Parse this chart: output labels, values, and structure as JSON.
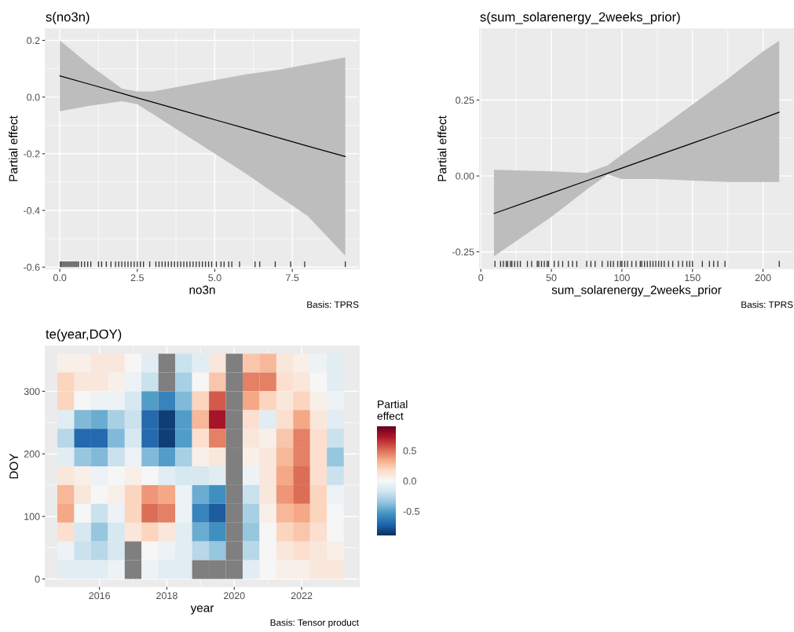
{
  "chart_data": [
    {
      "type": "line",
      "title": "s(no3n)",
      "xlabel": "no3n",
      "ylabel": "Partial effect",
      "annotations": [
        "Basis: TPRS"
      ],
      "xlim": [
        -0.46,
        9.65
      ],
      "ylim": [
        -0.605,
        0.24
      ],
      "xticks": [
        {
          "value": 0,
          "label": "0.0"
        },
        {
          "value": 2.5,
          "label": "2.5"
        },
        {
          "value": 5,
          "label": "5.0"
        },
        {
          "value": 7.5,
          "label": "7.5"
        }
      ],
      "yticks": [
        {
          "value": -0.6,
          "label": "-0.6"
        },
        {
          "value": -0.4,
          "label": "-0.4"
        },
        {
          "value": -0.2,
          "label": "-0.2"
        },
        {
          "value": 0,
          "label": "0.0"
        },
        {
          "value": 0.2,
          "label": "0.2"
        }
      ],
      "grid": true,
      "series": [
        {
          "type": "line",
          "color": "#000000",
          "x": [
            0,
            1,
            2,
            2.5,
            3,
            4,
            5,
            6,
            7,
            8,
            9.21
          ],
          "values": [
            0.075,
            0.044,
            0.013,
            -0.003,
            -0.018,
            -0.049,
            -0.08,
            -0.111,
            -0.142,
            -0.173,
            -0.21
          ],
          "lower": [
            -0.05,
            -0.03,
            -0.015,
            -0.025,
            -0.06,
            -0.13,
            -0.2,
            -0.27,
            -0.345,
            -0.42,
            -0.56
          ],
          "upper": [
            0.2,
            0.11,
            0.03,
            0.02,
            0.02,
            0.04,
            0.06,
            0.08,
            0.095,
            0.115,
            0.14
          ]
        },
        {
          "type": "bar",
          "color": "#333333",
          "base": [
            -0.6,
            -0.6,
            -0.6,
            -0.6,
            -0.6,
            -0.6,
            -0.6,
            -0.6,
            -0.6,
            -0.6,
            -0.6,
            -0.6,
            -0.6,
            -0.6,
            -0.6,
            -0.6,
            -0.6,
            -0.6,
            -0.6,
            -0.6,
            -0.6,
            -0.6,
            -0.6,
            -0.6,
            -0.6,
            -0.6,
            -0.6,
            -0.6,
            -0.6,
            -0.6,
            -0.6,
            -0.6,
            -0.6,
            -0.6,
            -0.6,
            -0.6,
            -0.6,
            -0.6,
            -0.6,
            -0.6,
            -0.6,
            -0.6,
            -0.6,
            -0.6,
            -0.6,
            -0.6,
            -0.6,
            -0.6,
            -0.6,
            -0.6,
            -0.6,
            -0.6,
            -0.6,
            -0.6,
            -0.6,
            -0.6,
            -0.6,
            -0.6,
            -0.6,
            -0.6,
            -0.6,
            -0.6,
            -0.6
          ],
          "x": [
            0.02,
            0.05,
            0.1,
            0.15,
            0.2,
            0.25,
            0.3,
            0.35,
            0.4,
            0.45,
            0.5,
            0.55,
            0.6,
            0.7,
            0.8,
            0.9,
            1.0,
            1.25,
            1.35,
            1.5,
            1.65,
            1.8,
            1.9,
            2.0,
            2.1,
            2.2,
            2.3,
            2.4,
            2.5,
            2.6,
            2.7,
            2.9,
            3.1,
            3.2,
            3.3,
            3.4,
            3.5,
            3.6,
            3.7,
            3.8,
            3.9,
            4.0,
            4.1,
            4.2,
            4.3,
            4.4,
            4.5,
            4.6,
            4.7,
            4.8,
            4.9,
            5.05,
            5.2,
            5.3,
            5.45,
            5.55,
            5.8,
            6.3,
            6.45,
            6.95,
            7.45,
            7.9,
            9.21
          ],
          "values": [
            0.02,
            0.02,
            0.02,
            0.02,
            0.02,
            0.02,
            0.02,
            0.02,
            0.02,
            0.02,
            0.02,
            0.02,
            0.02,
            0.02,
            0.02,
            0.02,
            0.02,
            0.02,
            0.02,
            0.02,
            0.02,
            0.02,
            0.02,
            0.02,
            0.02,
            0.02,
            0.02,
            0.02,
            0.02,
            0.02,
            0.02,
            0.02,
            0.02,
            0.02,
            0.02,
            0.02,
            0.02,
            0.02,
            0.02,
            0.02,
            0.02,
            0.02,
            0.02,
            0.02,
            0.02,
            0.02,
            0.02,
            0.02,
            0.02,
            0.02,
            0.02,
            0.02,
            0.02,
            0.02,
            0.02,
            0.02,
            0.02,
            0.02,
            0.02,
            0.02,
            0.02,
            0.02,
            0.02
          ]
        }
      ]
    },
    {
      "type": "line",
      "title": "s(sum_solarenergy_2weeks_prior)",
      "xlabel": "sum_solarenergy_2weeks_prior",
      "ylabel": "Partial effect",
      "annotations": [
        "Basis: TPRS"
      ],
      "xlim": [
        -0.7,
        221.4
      ],
      "ylim": [
        -0.305,
        0.484
      ],
      "xticks": [
        0,
        50,
        100,
        150,
        200
      ],
      "yticks": [
        {
          "value": -0.25,
          "label": "-0.25"
        },
        {
          "value": 0,
          "label": "0.00"
        },
        {
          "value": 0.25,
          "label": "0.25"
        }
      ],
      "grid": true,
      "series": [
        {
          "type": "line",
          "color": "#000000",
          "x": [
            9.3,
            50,
            75,
            90,
            100,
            125,
            150,
            175,
            200,
            211.5
          ],
          "values": [
            -0.124,
            -0.057,
            -0.016,
            0.009,
            0.026,
            0.067,
            0.108,
            0.149,
            0.19,
            0.21
          ],
          "lower": [
            -0.265,
            -0.135,
            -0.045,
            0.005,
            -0.01,
            -0.01,
            -0.015,
            -0.02,
            -0.02,
            -0.02
          ],
          "upper": [
            0.02,
            0.015,
            0.01,
            0.035,
            0.07,
            0.15,
            0.235,
            0.32,
            0.41,
            0.445
          ]
        },
        {
          "type": "bar",
          "color": "#333333",
          "base": [
            -0.3,
            -0.3,
            -0.3,
            -0.3,
            -0.3,
            -0.3,
            -0.3,
            -0.3,
            -0.3,
            -0.3,
            -0.3,
            -0.3,
            -0.3,
            -0.3,
            -0.3,
            -0.3,
            -0.3,
            -0.3,
            -0.3,
            -0.3,
            -0.3,
            -0.3,
            -0.3,
            -0.3,
            -0.3,
            -0.3,
            -0.3,
            -0.3,
            -0.3,
            -0.3,
            -0.3,
            -0.3,
            -0.3,
            -0.3,
            -0.3,
            -0.3,
            -0.3,
            -0.3,
            -0.3,
            -0.3,
            -0.3,
            -0.3,
            -0.3,
            -0.3,
            -0.3,
            -0.3,
            -0.3,
            -0.3,
            -0.3,
            -0.3,
            -0.3,
            -0.3,
            -0.3,
            -0.3,
            -0.3,
            -0.3,
            -0.3,
            -0.3,
            -0.3,
            -0.3,
            -0.3
          ],
          "x": [
            10,
            14,
            16,
            18,
            19,
            21,
            22,
            24,
            26,
            28,
            33,
            36,
            40,
            41,
            43,
            45,
            47,
            48,
            52,
            55,
            58,
            62,
            65,
            68,
            75,
            78,
            81,
            86,
            90,
            92,
            94,
            97,
            99,
            100,
            102,
            104,
            107,
            110,
            113,
            114,
            116,
            118,
            120,
            122,
            124,
            126,
            128,
            130,
            133,
            136,
            140,
            143,
            146,
            148,
            150,
            157,
            162,
            165,
            168,
            173,
            211.5
          ],
          "values": [
            0.02,
            0.02,
            0.02,
            0.02,
            0.02,
            0.02,
            0.02,
            0.02,
            0.02,
            0.02,
            0.02,
            0.02,
            0.02,
            0.02,
            0.02,
            0.02,
            0.02,
            0.02,
            0.02,
            0.02,
            0.02,
            0.02,
            0.02,
            0.02,
            0.02,
            0.02,
            0.02,
            0.02,
            0.02,
            0.02,
            0.02,
            0.02,
            0.02,
            0.02,
            0.02,
            0.02,
            0.02,
            0.02,
            0.02,
            0.02,
            0.02,
            0.02,
            0.02,
            0.02,
            0.02,
            0.02,
            0.02,
            0.02,
            0.02,
            0.02,
            0.02,
            0.02,
            0.02,
            0.02,
            0.02,
            0.02,
            0.02,
            0.02,
            0.02,
            0.02,
            0.02
          ]
        }
      ]
    },
    {
      "type": "heatmap",
      "title": "te(year,DOY)",
      "xlabel": "year",
      "ylabel": "DOY",
      "clabel": "Partial\neffect",
      "annotations": [
        "Basis: Tensor product"
      ],
      "xlim": [
        2014.4,
        2023.7
      ],
      "ylim": [
        -12,
        372
      ],
      "xticks": [
        2016,
        2018,
        2020,
        2022
      ],
      "yticks": [
        0,
        100,
        200,
        300
      ],
      "clim": [
        -0.9,
        0.9
      ],
      "cticks": [
        {
          "value": -0.5,
          "label": "-0.5"
        },
        {
          "value": 0,
          "label": "0.0"
        },
        {
          "value": 0.5,
          "label": "0.5"
        }
      ],
      "grid": true,
      "x": [
        2015,
        2015.5,
        2016,
        2016.5,
        2017,
        2017.5,
        2018,
        2018.5,
        2019,
        2019.5,
        2020,
        2020.5,
        2021,
        2021.5,
        2022,
        2022.5,
        2023
      ],
      "y": [
        345,
        315,
        285,
        255,
        225,
        195,
        165,
        135,
        105,
        75,
        45,
        15
      ],
      "cells": [
        [
          0.05,
          0.05,
          0.1,
          0.1,
          0,
          -0.1,
          null,
          -0.2,
          -0.1,
          0.1,
          null,
          0.25,
          0.3,
          0.1,
          0.05,
          -0.05,
          -0.1
        ],
        [
          0.2,
          0.1,
          0.1,
          0.05,
          -0.05,
          -0.2,
          null,
          -0.3,
          0,
          0.25,
          null,
          0.45,
          0.45,
          0.15,
          0.1,
          0,
          -0.1
        ],
        [
          0.2,
          0,
          -0.05,
          -0.05,
          -0.15,
          -0.5,
          -0.6,
          -0.4,
          0.2,
          0.55,
          null,
          0.35,
          0.2,
          0.1,
          0.2,
          0.05,
          -0.05
        ],
        [
          -0.1,
          -0.4,
          -0.45,
          -0.3,
          -0.2,
          -0.7,
          -0.85,
          -0.5,
          0.3,
          0.75,
          null,
          0.15,
          -0.1,
          0.15,
          0.35,
          0.1,
          -0.1
        ],
        [
          -0.25,
          -0.7,
          -0.7,
          -0.4,
          -0.15,
          -0.7,
          -0.85,
          -0.5,
          0.15,
          0.45,
          null,
          0.1,
          0.05,
          0.25,
          0.45,
          0.15,
          -0.2
        ],
        [
          -0.1,
          -0.35,
          -0.4,
          -0.2,
          -0.05,
          -0.4,
          -0.5,
          -0.3,
          0.05,
          0.1,
          null,
          0.05,
          0.1,
          0.3,
          0.45,
          0.15,
          -0.35
        ],
        [
          0.1,
          0.05,
          -0.05,
          0,
          0.05,
          0,
          -0.1,
          -0.15,
          -0.15,
          -0.1,
          null,
          -0.05,
          0.1,
          0.35,
          0.5,
          0.15,
          -0.2
        ],
        [
          0.3,
          0.1,
          0,
          0.05,
          0.2,
          0.4,
          0.35,
          -0.05,
          -0.45,
          -0.55,
          null,
          -0.2,
          0.1,
          0.4,
          0.5,
          0.2,
          -0.05
        ],
        [
          0.35,
          0,
          -0.2,
          -0.05,
          0.2,
          0.5,
          0.45,
          -0.05,
          -0.6,
          -0.75,
          null,
          -0.3,
          0.05,
          0.3,
          0.35,
          0.2,
          0
        ],
        [
          0.15,
          -0.15,
          -0.35,
          -0.15,
          0.1,
          0.2,
          0.1,
          -0.1,
          -0.45,
          -0.55,
          null,
          -0.35,
          0,
          0.2,
          0.25,
          0.15,
          0
        ],
        [
          -0.05,
          -0.2,
          -0.25,
          -0.15,
          null,
          0,
          -0.05,
          -0.1,
          -0.25,
          -0.35,
          null,
          -0.25,
          0,
          0.1,
          0.15,
          0.1,
          0.05
        ],
        [
          -0.1,
          -0.1,
          -0.1,
          -0.05,
          null,
          -0.05,
          -0.1,
          -0.1,
          null,
          null,
          null,
          -0.1,
          0,
          0.05,
          0.05,
          0.1,
          0.1
        ]
      ]
    }
  ]
}
